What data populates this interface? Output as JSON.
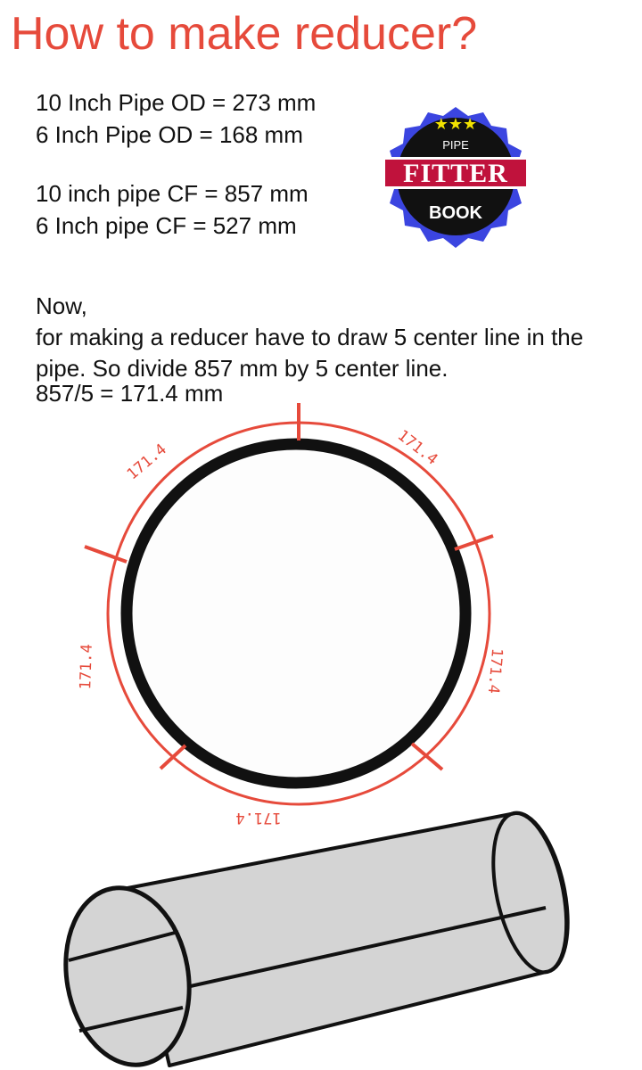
{
  "title": "How to make reducer?",
  "od_lines": [
    "10 Inch Pipe OD = 273 mm",
    "6 Inch Pipe OD = 168 mm"
  ],
  "cf_lines": [
    "10 inch pipe CF = 857 mm",
    "6 Inch pipe CF = 527 mm"
  ],
  "now_text": "Now,",
  "instruction": "for making a reducer have to draw 5 center line in the pipe. So divide 857 mm by 5 center line.",
  "calculation": "857/5 = 171.4 mm",
  "badge": {
    "top": "PIPE",
    "middle": "FITTER",
    "bottom": "BOOK",
    "colors": {
      "ring": "#3b45e0",
      "band": "#c0123c",
      "body": "#111111",
      "stars": "#f2e200"
    }
  },
  "diagram": {
    "segment_labels": [
      "171.4",
      "171.4",
      "171.4",
      "171.4",
      "171.4"
    ],
    "colors": {
      "marks": "#e64a3b",
      "pipe_wall": "#111111",
      "pipe_fill": "#d4d4d4"
    }
  }
}
